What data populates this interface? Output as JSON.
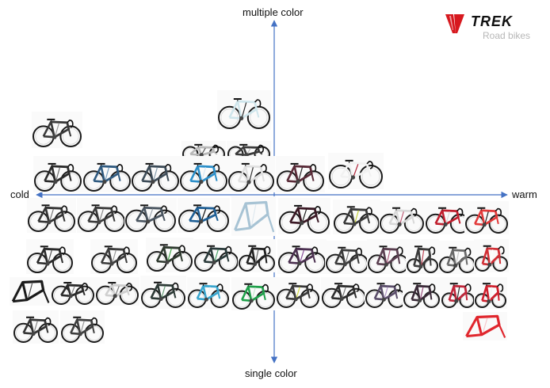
{
  "axes": {
    "top": "multiple color",
    "bottom": "single color",
    "left": "cold",
    "right": "warm"
  },
  "logo": {
    "brand": "TREK",
    "subtitle": "Road bikes"
  },
  "colors": {
    "axis": "#4472c4",
    "logo_red": "#d7191f"
  },
  "bikes": [
    {
      "type": "bike",
      "frame": "#3a3a3a",
      "accent": "#9a9a9a"
    },
    {
      "type": "bike",
      "frame": "#cfe6ec",
      "accent": "#2a2a2a"
    },
    {
      "type": "bike",
      "frame": "#b9b9b9",
      "accent": "#5a5a5a"
    },
    {
      "type": "bike",
      "frame": "#3a3a3a",
      "accent": "#bdbdbd"
    },
    {
      "type": "bike",
      "frame": "#2b2b2b",
      "accent": "#6f6f6f"
    },
    {
      "type": "bike",
      "frame": "#2f5a80",
      "accent": "#7a9fbf"
    },
    {
      "type": "bike",
      "frame": "#3c4b57",
      "accent": "#8aa0b0"
    },
    {
      "type": "bike",
      "frame": "#2c8fc9",
      "accent": "#d8e8f3"
    },
    {
      "type": "bike",
      "frame": "#e0e0e0",
      "accent": "#333333"
    },
    {
      "type": "bike",
      "frame": "#5a2b38",
      "accent": "#2a2a2a"
    },
    {
      "type": "bike",
      "frame": "#f2f2f2",
      "accent": "#b0253a"
    },
    {
      "type": "bike",
      "frame": "#333333",
      "accent": "#777777"
    },
    {
      "type": "bike",
      "frame": "#3a3a3a",
      "accent": "#8a8a8a"
    },
    {
      "type": "bike",
      "frame": "#4a5560",
      "accent": "#a0a8b0"
    },
    {
      "type": "bike",
      "frame": "#1f5f95",
      "accent": "#111111"
    },
    {
      "type": "frame",
      "frame": "#a7c3d4",
      "accent": "#dfe9ef"
    },
    {
      "type": "bike",
      "frame": "#3a1824",
      "accent": "#222222"
    },
    {
      "type": "bike",
      "frame": "#3a3a3a",
      "accent": "#c6d23a"
    },
    {
      "type": "bike",
      "frame": "#d9d9d9",
      "accent": "#c0607a"
    },
    {
      "type": "bike",
      "frame": "#c01f2e",
      "accent": "#d8d8d8"
    },
    {
      "type": "bike",
      "frame": "#e23a3a",
      "accent": "#222222"
    },
    {
      "type": "bike",
      "frame": "#2a2a2a",
      "accent": "#555555"
    },
    {
      "type": "bike",
      "frame": "#3b3b3b",
      "accent": "#999999"
    },
    {
      "type": "bike",
      "frame": "#2f3a2f",
      "accent": "#45a84a"
    },
    {
      "type": "bike",
      "frame": "#2a3a3a",
      "accent": "#4aa56a"
    },
    {
      "type": "bike",
      "frame": "#222222",
      "accent": "#6a6a6a"
    },
    {
      "type": "bike",
      "frame": "#4a2f4f",
      "accent": "#8a4f9a"
    },
    {
      "type": "bike",
      "frame": "#3b3b3b",
      "accent": "#7a7a7a"
    },
    {
      "type": "bike",
      "frame": "#5a3f50",
      "accent": "#b05f80"
    },
    {
      "type": "bike",
      "frame": "#3a3a3a",
      "accent": "#c04a5a"
    },
    {
      "type": "bike",
      "frame": "#6a6a6a",
      "accent": "#c9c9c9"
    },
    {
      "type": "bike",
      "frame": "#d12f35",
      "accent": "#ffffff"
    },
    {
      "type": "frame",
      "frame": "#1a1a1a",
      "accent": "#555555"
    },
    {
      "type": "bike",
      "frame": "#2a2a2a",
      "accent": "#8a8a8a"
    },
    {
      "type": "bike",
      "frame": "#cfcfcf",
      "accent": "#7a7a7a"
    },
    {
      "type": "bike",
      "frame": "#2d3a36",
      "accent": "#6aa07a"
    },
    {
      "type": "bike",
      "frame": "#39a6cf",
      "accent": "#e8f4f9"
    },
    {
      "type": "bike",
      "frame": "#1fa04a",
      "accent": "#c8e8d0"
    },
    {
      "type": "bike",
      "frame": "#3a3a3a",
      "accent": "#d8e04a"
    },
    {
      "type": "bike",
      "frame": "#2d2d2d",
      "accent": "#7a7a7a"
    },
    {
      "type": "bike",
      "frame": "#5a4d6a",
      "accent": "#b59acb"
    },
    {
      "type": "bike",
      "frame": "#3a2a38",
      "accent": "#9a5080"
    },
    {
      "type": "bike",
      "frame": "#c0263a",
      "accent": "#2a2a2a"
    },
    {
      "type": "bike",
      "frame": "#d0202d",
      "accent": "#f1f1f1"
    },
    {
      "type": "bike",
      "frame": "#333333",
      "accent": "#888888"
    },
    {
      "type": "bike",
      "frame": "#3f3f3f",
      "accent": "#9a9a9a"
    },
    {
      "type": "frame",
      "frame": "#e0262d",
      "accent": "#f7c8cb"
    }
  ]
}
